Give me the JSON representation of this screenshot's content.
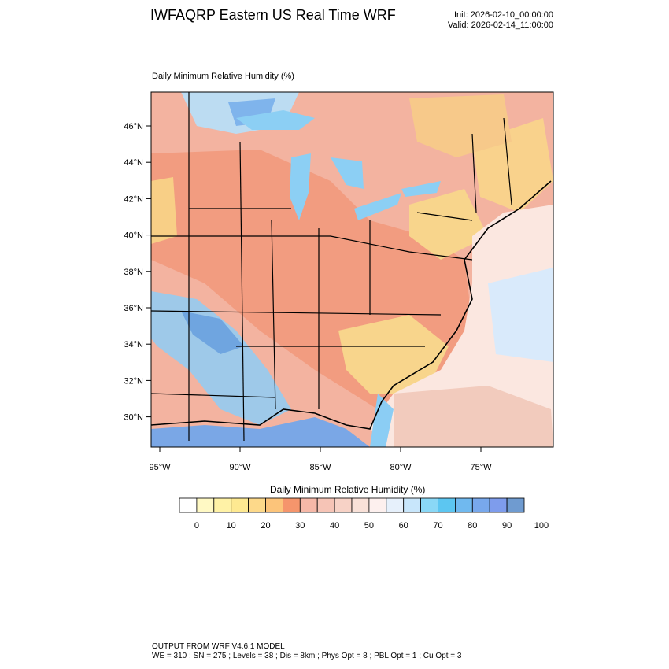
{
  "header": {
    "title": "IWFAQRP Eastern US Real Time WRF",
    "init": "Init: 2026-02-10_00:00:00",
    "valid": "Valid: 2026-02-14_11:00:00"
  },
  "field": {
    "title": "Daily Minimum Relative Humidity   (%)"
  },
  "map": {
    "lat_labels": [
      {
        "value": 46,
        "label": "46°N"
      },
      {
        "value": 44,
        "label": "44°N"
      },
      {
        "value": 42,
        "label": "42°N"
      },
      {
        "value": 40,
        "label": "40°N"
      },
      {
        "value": 38,
        "label": "38°N"
      },
      {
        "value": 36,
        "label": "36°N"
      },
      {
        "value": 34,
        "label": "34°N"
      },
      {
        "value": 32,
        "label": "32°N"
      },
      {
        "value": 30,
        "label": "30°N"
      }
    ],
    "lon_labels": [
      {
        "value": -95,
        "label": "95°W"
      },
      {
        "value": -90,
        "label": "90°W"
      },
      {
        "value": -85,
        "label": "85°W"
      },
      {
        "value": -80,
        "label": "80°W"
      },
      {
        "value": -75,
        "label": "75°W"
      }
    ],
    "colors": {
      "dry": "#f5a07c",
      "mid": "#f3c9b8",
      "moist": "#8ec7ef",
      "ocean": "#fbe7e0",
      "yellow": "#f8d88a"
    }
  },
  "colorbar": {
    "title": "Daily Minimum Relative Humidity  (%)",
    "colors": [
      "#ffffff",
      "#fff9c4",
      "#fff2a6",
      "#fee991",
      "#fdd98a",
      "#fcc47a",
      "#f5956c",
      "#f6b8a8",
      "#f6c4b6",
      "#f7d2c6",
      "#f9e1d8",
      "#fdf0ee",
      "#e6f0fb",
      "#c8e6fb",
      "#8ad8f6",
      "#5cc6f1",
      "#70b9ef",
      "#78a8ec",
      "#7e9cec",
      "#6f9bd0"
    ],
    "labels": [
      "0",
      "10",
      "20",
      "30",
      "40",
      "50",
      "60",
      "70",
      "80",
      "90",
      "100"
    ]
  },
  "footer": {
    "line1": "OUTPUT FROM WRF V4.6.1 MODEL",
    "line2": "WE = 310 ; SN = 275 ; Levels = 38 ; Dis = 8km ; Phys Opt = 8 ; PBL Opt = 1 ; Cu Opt = 3"
  }
}
